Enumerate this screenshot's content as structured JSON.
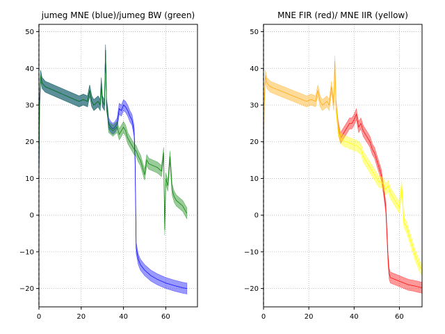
{
  "chart_data": [
    {
      "type": "line",
      "title": "jumeg MNE (blue)/jumeg BW (green)",
      "xlabel": "",
      "ylabel": "",
      "xlim": [
        0,
        75
      ],
      "ylim": [
        -25,
        52
      ],
      "xticks": [
        0,
        20,
        40,
        60
      ],
      "yticks": [
        -20,
        -10,
        0,
        10,
        20,
        30,
        40,
        50
      ],
      "grid": true,
      "grid_style": "dotted",
      "series": [
        {
          "color": "#0000ff",
          "band_halfwidth": 1.5,
          "x": [
            0,
            0.3,
            0.8,
            1.5,
            3,
            5,
            7,
            9,
            11,
            13,
            15,
            17,
            19,
            21,
            23,
            24,
            25,
            26,
            27,
            28,
            29,
            29.5,
            30,
            31,
            31.5,
            32,
            32.5,
            33,
            34,
            35,
            36,
            37,
            38,
            39,
            40,
            41,
            42,
            43,
            44,
            45,
            45.5,
            46,
            47,
            48,
            50,
            53,
            56,
            60,
            64,
            68,
            70
          ],
          "y": [
            10,
            30,
            38,
            36,
            35,
            34.5,
            34,
            33.5,
            33,
            32.5,
            32,
            31.5,
            31,
            31.5,
            31,
            34,
            31,
            30,
            30.5,
            31,
            30,
            36,
            31,
            30,
            45,
            30,
            28,
            25,
            24,
            23.5,
            24,
            25,
            29,
            28.5,
            30,
            29.5,
            28.5,
            27,
            26,
            23,
            15,
            -9,
            -12,
            -13.5,
            -15,
            -16.5,
            -17.5,
            -18.5,
            -19.2,
            -19.8,
            -20
          ]
        },
        {
          "color": "#008000",
          "band_halfwidth": 1.5,
          "x": [
            0,
            0.3,
            0.8,
            1.5,
            3,
            5,
            7,
            9,
            11,
            13,
            15,
            17,
            19,
            21,
            23,
            24,
            25,
            26,
            27,
            28,
            29,
            29.5,
            30,
            31,
            31.5,
            32,
            32.5,
            33,
            34,
            35,
            36,
            37,
            38,
            39,
            40,
            41,
            42,
            43,
            44,
            45,
            46,
            47,
            48,
            49,
            50,
            51,
            52,
            54,
            56,
            57,
            58,
            59,
            59.5,
            60,
            61,
            62,
            63,
            64,
            65,
            66,
            67,
            68,
            69,
            70
          ],
          "y": [
            10,
            30,
            38,
            36,
            35,
            34.5,
            34,
            33.5,
            33,
            32.5,
            32,
            31.5,
            31,
            31.5,
            31,
            34,
            31,
            30,
            30.5,
            31,
            30,
            36,
            31,
            30,
            45,
            30,
            28,
            24,
            23.5,
            23,
            23.5,
            24,
            22,
            23,
            24,
            23,
            21,
            20,
            19,
            18,
            17.5,
            16,
            15,
            13,
            11,
            15,
            14,
            13.5,
            13,
            12.5,
            12,
            17,
            -4,
            10,
            8,
            16,
            7,
            5,
            4,
            3.5,
            3,
            2.5,
            1.5,
            0.5
          ]
        }
      ]
    },
    {
      "type": "line",
      "title": "MNE FIR (red)/ MNE IIR (yellow)",
      "xlabel": "",
      "ylabel": "",
      "xlim": [
        0,
        70
      ],
      "ylim": [
        -25,
        52
      ],
      "xticks": [
        0,
        20,
        40,
        60
      ],
      "yticks": [
        -20,
        -10,
        0,
        10,
        20,
        30,
        40,
        50
      ],
      "grid": true,
      "grid_style": "dotted",
      "series": [
        {
          "color": "#ffa500",
          "band_halfwidth": 1.5,
          "x": [
            0,
            0.3,
            0.8,
            1.5,
            3,
            5,
            7,
            9,
            11,
            13,
            15,
            17,
            19,
            21,
            23,
            24,
            25,
            26,
            27,
            28,
            29,
            30,
            31,
            31.5,
            32
          ],
          "y": [
            12,
            30,
            38,
            36,
            35,
            34.5,
            34,
            33.5,
            33,
            32.5,
            32,
            31.5,
            31,
            31.5,
            31,
            34,
            31,
            30,
            30.5,
            31,
            30,
            35,
            30,
            42,
            30
          ]
        },
        {
          "color": "#ff0000",
          "band_halfwidth": 1.5,
          "x": [
            32,
            33,
            34,
            35,
            36,
            37,
            38,
            39,
            40,
            41,
            42,
            43,
            44,
            45,
            46,
            47,
            48,
            49,
            50,
            51,
            52,
            53,
            54,
            54.5,
            55,
            55.5,
            56,
            58,
            60,
            62,
            64,
            66,
            68,
            70
          ],
          "y": [
            30,
            24,
            21,
            22,
            23,
            24,
            25,
            25,
            26,
            27.5,
            24,
            25,
            23,
            22,
            21,
            20,
            18,
            17,
            15,
            13,
            11,
            7,
            2,
            -5,
            -12,
            -16,
            -17,
            -17.5,
            -18,
            -18.5,
            -19,
            -19.2,
            -19.5,
            -19.8
          ]
        },
        {
          "color": "#ffff00",
          "band_halfwidth": 1.5,
          "x": [
            32,
            33,
            34,
            35,
            36,
            37,
            38,
            39,
            40,
            41,
            42,
            43,
            44,
            45,
            46,
            47,
            48,
            49,
            50,
            51,
            52,
            53,
            54,
            55,
            56,
            57,
            58,
            59,
            60,
            61,
            62,
            63,
            64,
            65,
            66,
            67,
            68,
            69,
            70
          ],
          "y": [
            30,
            23,
            21,
            20.5,
            20,
            20,
            19.5,
            19.5,
            19,
            19,
            18.5,
            18,
            16,
            15,
            14,
            13,
            12,
            11,
            10,
            9,
            9,
            8.5,
            7,
            8,
            6,
            5,
            4,
            3,
            2,
            8,
            -2,
            -3,
            -5,
            -7,
            -9,
            -11,
            -12.5,
            -14,
            -15
          ]
        }
      ]
    }
  ]
}
